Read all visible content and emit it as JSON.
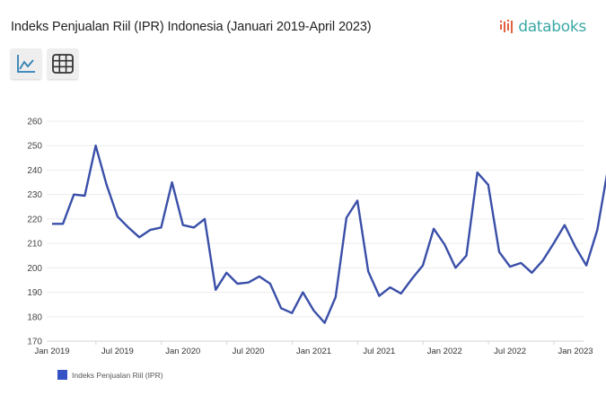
{
  "header": {
    "title": "Indeks Penjualan Riil (IPR) Indonesia (Januari 2019-April 2023)",
    "logo_text": "databoks"
  },
  "toolbar": {
    "buttons": [
      {
        "name": "line-chart-view",
        "icon": "line-chart-icon",
        "active": true
      },
      {
        "name": "table-view",
        "icon": "table-grid-icon",
        "active": false
      }
    ]
  },
  "colors": {
    "series": "#3a4fa8",
    "legend": "#3553c5",
    "logo_teal": "#3aa8a5",
    "logo_red": "#e0623f",
    "grid": "#ececec"
  },
  "legend": {
    "label": "Indeks Penjualan Riil (IPR)"
  },
  "chart_data": {
    "type": "line",
    "title": "Indeks Penjualan Riil (IPR) Indonesia (Januari 2019-April 2023)",
    "xlabel": "",
    "ylabel": "",
    "ylim": [
      170,
      260
    ],
    "yticks": [
      170,
      180,
      190,
      200,
      210,
      220,
      230,
      240,
      250,
      260
    ],
    "xtick_labels": [
      "Jan 2019",
      "Jul 2019",
      "Jan 2020",
      "Jul 2020",
      "Jan 2021",
      "Jul 2021",
      "Jan 2022",
      "Jul 2022",
      "Jan 2023"
    ],
    "xtick_index": [
      0,
      6,
      12,
      18,
      24,
      30,
      36,
      42,
      48
    ],
    "grid": true,
    "legend_position": "bottom-left",
    "x": [
      "Jan 2019",
      "Feb 2019",
      "Mar 2019",
      "Apr 2019",
      "May 2019",
      "Jun 2019",
      "Jul 2019",
      "Aug 2019",
      "Sep 2019",
      "Oct 2019",
      "Nov 2019",
      "Dec 2019",
      "Jan 2020",
      "Feb 2020",
      "Mar 2020",
      "Apr 2020",
      "May 2020",
      "Jun 2020",
      "Jul 2020",
      "Aug 2020",
      "Sep 2020",
      "Oct 2020",
      "Nov 2020",
      "Dec 2020",
      "Jan 2021",
      "Feb 2021",
      "Mar 2021",
      "Apr 2021",
      "May 2021",
      "Jun 2021",
      "Jul 2021",
      "Aug 2021",
      "Sep 2021",
      "Oct 2021",
      "Nov 2021",
      "Dec 2021",
      "Jan 2022",
      "Feb 2022",
      "Mar 2022",
      "Apr 2022",
      "May 2022",
      "Jun 2022",
      "Jul 2022",
      "Aug 2022",
      "Sep 2022",
      "Oct 2022",
      "Nov 2022",
      "Dec 2022",
      "Jan 2023",
      "Feb 2023",
      "Mar 2023",
      "Apr 2023"
    ],
    "series": [
      {
        "name": "Indeks Penjualan Riil (IPR)",
        "values": [
          218,
          218,
          230,
          229.5,
          250,
          234,
          221,
          216.5,
          212.5,
          215.5,
          216.5,
          235,
          217.5,
          216.5,
          220,
          191,
          198,
          193.5,
          194,
          196.5,
          193.5,
          183.5,
          181.5,
          190,
          182.5,
          177.5,
          188,
          220.5,
          227.5,
          198.5,
          188.5,
          192,
          189.5,
          195.5,
          201,
          216,
          209.5,
          200,
          205,
          239,
          234,
          206.5,
          200.5,
          202,
          198,
          203,
          210,
          217.5,
          208.5,
          201,
          215.5,
          241
        ]
      }
    ]
  }
}
